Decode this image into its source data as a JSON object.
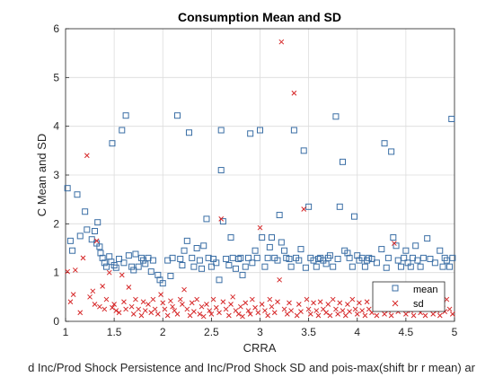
{
  "chart_data": {
    "type": "scatter",
    "title": "Consumption Mean and SD",
    "xlabel": "CRRA",
    "ylabel": "C Mean and SD",
    "caption": "d Inc/Prod Shock Persistence and Inc/Prod Shock SD and pois-max(shift br r mean) ar",
    "xlim": [
      1,
      5
    ],
    "ylim": [
      0,
      6
    ],
    "xticks": [
      "1",
      "1.5",
      "2",
      "2.5",
      "3",
      "3.5",
      "4",
      "4.5",
      "5"
    ],
    "yticks": [
      "0",
      "1",
      "2",
      "3",
      "4",
      "5",
      "6"
    ],
    "grid": true,
    "legend_position": "bottom-right",
    "colors": {
      "mean": "#3a6ea5",
      "sd": "#d62728"
    },
    "series": [
      {
        "name": "mean",
        "marker": "square",
        "points": [
          [
            1.02,
            2.73
          ],
          [
            1.05,
            1.65
          ],
          [
            1.07,
            1.45
          ],
          [
            1.12,
            2.6
          ],
          [
            1.15,
            1.75
          ],
          [
            1.2,
            2.25
          ],
          [
            1.22,
            1.88
          ],
          [
            1.27,
            1.68
          ],
          [
            1.3,
            1.85
          ],
          [
            1.32,
            1.6
          ],
          [
            1.33,
            2.03
          ],
          [
            1.35,
            1.53
          ],
          [
            1.36,
            1.4
          ],
          [
            1.38,
            1.3
          ],
          [
            1.4,
            1.2
          ],
          [
            1.42,
            1.12
          ],
          [
            1.45,
            1.33
          ],
          [
            1.47,
            1.22
          ],
          [
            1.48,
            3.65
          ],
          [
            1.5,
            1.15
          ],
          [
            1.52,
            1.1
          ],
          [
            1.55,
            1.28
          ],
          [
            1.58,
            3.92
          ],
          [
            1.6,
            1.2
          ],
          [
            1.62,
            4.22
          ],
          [
            1.65,
            1.35
          ],
          [
            1.68,
            1.12
          ],
          [
            1.7,
            1.05
          ],
          [
            1.72,
            1.38
          ],
          [
            1.75,
            1.12
          ],
          [
            1.78,
            1.3
          ],
          [
            1.8,
            1.25
          ],
          [
            1.82,
            1.18
          ],
          [
            1.85,
            1.3
          ],
          [
            1.88,
            1.02
          ],
          [
            1.9,
            1.25
          ],
          [
            1.95,
            0.95
          ],
          [
            1.97,
            0.85
          ],
          [
            2.0,
            0.78
          ],
          [
            2.05,
            1.25
          ],
          [
            2.08,
            0.93
          ],
          [
            2.1,
            1.3
          ],
          [
            2.15,
            4.22
          ],
          [
            2.18,
            1.28
          ],
          [
            2.2,
            1.15
          ],
          [
            2.22,
            1.45
          ],
          [
            2.25,
            1.65
          ],
          [
            2.27,
            3.87
          ],
          [
            2.3,
            1.3
          ],
          [
            2.32,
            1.12
          ],
          [
            2.35,
            1.5
          ],
          [
            2.38,
            1.25
          ],
          [
            2.4,
            1.08
          ],
          [
            2.42,
            1.55
          ],
          [
            2.45,
            2.1
          ],
          [
            2.47,
            1.3
          ],
          [
            2.5,
            1.12
          ],
          [
            2.52,
            1.28
          ],
          [
            2.55,
            1.2
          ],
          [
            2.58,
            0.85
          ],
          [
            2.6,
            3.92
          ],
          [
            2.6,
            3.1
          ],
          [
            2.62,
            2.05
          ],
          [
            2.65,
            1.28
          ],
          [
            2.68,
            1.15
          ],
          [
            2.7,
            1.72
          ],
          [
            2.72,
            1.3
          ],
          [
            2.75,
            1.08
          ],
          [
            2.78,
            1.28
          ],
          [
            2.8,
            1.3
          ],
          [
            2.82,
            0.95
          ],
          [
            2.85,
            1.12
          ],
          [
            2.88,
            1.3
          ],
          [
            2.9,
            3.85
          ],
          [
            2.92,
            1.2
          ],
          [
            2.95,
            1.45
          ],
          [
            2.97,
            1.3
          ],
          [
            3.0,
            3.92
          ],
          [
            3.02,
            1.72
          ],
          [
            3.05,
            1.12
          ],
          [
            3.08,
            1.3
          ],
          [
            3.1,
            1.52
          ],
          [
            3.12,
            1.72
          ],
          [
            3.15,
            1.3
          ],
          [
            3.18,
            1.25
          ],
          [
            3.2,
            2.18
          ],
          [
            3.22,
            1.62
          ],
          [
            3.25,
            1.45
          ],
          [
            3.27,
            1.3
          ],
          [
            3.3,
            1.28
          ],
          [
            3.32,
            1.12
          ],
          [
            3.35,
            3.92
          ],
          [
            3.37,
            1.3
          ],
          [
            3.4,
            1.25
          ],
          [
            3.42,
            1.48
          ],
          [
            3.45,
            3.5
          ],
          [
            3.47,
            1.1
          ],
          [
            3.5,
            2.35
          ],
          [
            3.52,
            1.3
          ],
          [
            3.55,
            1.25
          ],
          [
            3.58,
            1.12
          ],
          [
            3.6,
            1.28
          ],
          [
            3.62,
            1.3
          ],
          [
            3.65,
            1.25
          ],
          [
            3.68,
            1.18
          ],
          [
            3.7,
            1.3
          ],
          [
            3.72,
            1.35
          ],
          [
            3.75,
            1.12
          ],
          [
            3.78,
            4.2
          ],
          [
            3.8,
            1.28
          ],
          [
            3.82,
            2.35
          ],
          [
            3.85,
            3.27
          ],
          [
            3.87,
            1.45
          ],
          [
            3.9,
            1.4
          ],
          [
            3.92,
            1.3
          ],
          [
            3.95,
            1.12
          ],
          [
            3.97,
            2.15
          ],
          [
            4.0,
            1.35
          ],
          [
            4.02,
            1.25
          ],
          [
            4.05,
            1.3
          ],
          [
            4.08,
            1.12
          ],
          [
            4.1,
            1.25
          ],
          [
            4.12,
            1.3
          ],
          [
            4.15,
            1.28
          ],
          [
            4.2,
            1.2
          ],
          [
            4.25,
            1.48
          ],
          [
            4.28,
            3.65
          ],
          [
            4.3,
            1.1
          ],
          [
            4.32,
            1.3
          ],
          [
            4.35,
            3.48
          ],
          [
            4.37,
            1.72
          ],
          [
            4.4,
            1.55
          ],
          [
            4.42,
            1.25
          ],
          [
            4.45,
            1.12
          ],
          [
            4.48,
            1.3
          ],
          [
            4.5,
            1.45
          ],
          [
            4.52,
            1.2
          ],
          [
            4.55,
            1.12
          ],
          [
            4.57,
            1.3
          ],
          [
            4.6,
            1.55
          ],
          [
            4.62,
            1.25
          ],
          [
            4.65,
            1.12
          ],
          [
            4.68,
            1.3
          ],
          [
            4.72,
            1.7
          ],
          [
            4.75,
            1.28
          ],
          [
            4.8,
            1.2
          ],
          [
            4.85,
            1.45
          ],
          [
            4.88,
            1.12
          ],
          [
            4.9,
            1.3
          ],
          [
            4.92,
            1.25
          ],
          [
            4.95,
            1.12
          ],
          [
            4.97,
            4.15
          ],
          [
            4.98,
            1.3
          ]
        ]
      },
      {
        "name": "sd",
        "marker": "x",
        "points": [
          [
            1.02,
            1.02
          ],
          [
            1.05,
            0.4
          ],
          [
            1.08,
            0.55
          ],
          [
            1.1,
            1.05
          ],
          [
            1.15,
            0.18
          ],
          [
            1.18,
            1.3
          ],
          [
            1.22,
            3.4
          ],
          [
            1.25,
            0.5
          ],
          [
            1.28,
            0.62
          ],
          [
            1.3,
            0.35
          ],
          [
            1.32,
            1.65
          ],
          [
            1.35,
            0.3
          ],
          [
            1.38,
            0.72
          ],
          [
            1.4,
            0.25
          ],
          [
            1.42,
            0.45
          ],
          [
            1.45,
            1.0
          ],
          [
            1.48,
            0.28
          ],
          [
            1.5,
            0.35
          ],
          [
            1.52,
            0.22
          ],
          [
            1.55,
            0.18
          ],
          [
            1.58,
            0.95
          ],
          [
            1.6,
            0.4
          ],
          [
            1.62,
            0.25
          ],
          [
            1.65,
            0.7
          ],
          [
            1.68,
            0.3
          ],
          [
            1.7,
            0.15
          ],
          [
            1.72,
            0.45
          ],
          [
            1.75,
            0.25
          ],
          [
            1.78,
            0.12
          ],
          [
            1.8,
            0.4
          ],
          [
            1.82,
            0.22
          ],
          [
            1.85,
            0.35
          ],
          [
            1.88,
            0.18
          ],
          [
            1.9,
            0.45
          ],
          [
            1.92,
            0.25
          ],
          [
            1.95,
            0.15
          ],
          [
            1.98,
            0.55
          ],
          [
            2.0,
            0.38
          ],
          [
            2.02,
            0.25
          ],
          [
            2.05,
            0.12
          ],
          [
            2.08,
            0.42
          ],
          [
            2.1,
            0.3
          ],
          [
            2.12,
            0.22
          ],
          [
            2.15,
            0.15
          ],
          [
            2.18,
            0.45
          ],
          [
            2.2,
            0.35
          ],
          [
            2.22,
            0.65
          ],
          [
            2.25,
            0.25
          ],
          [
            2.28,
            0.12
          ],
          [
            2.3,
            0.38
          ],
          [
            2.32,
            0.2
          ],
          [
            2.35,
            0.45
          ],
          [
            2.38,
            0.15
          ],
          [
            2.4,
            0.3
          ],
          [
            2.42,
            0.1
          ],
          [
            2.45,
            0.35
          ],
          [
            2.48,
            0.22
          ],
          [
            2.5,
            0.15
          ],
          [
            2.52,
            0.45
          ],
          [
            2.55,
            0.28
          ],
          [
            2.58,
            0.18
          ],
          [
            2.6,
            2.1
          ],
          [
            2.62,
            0.4
          ],
          [
            2.65,
            0.25
          ],
          [
            2.68,
            0.12
          ],
          [
            2.7,
            0.35
          ],
          [
            2.72,
            0.5
          ],
          [
            2.75,
            0.22
          ],
          [
            2.78,
            0.15
          ],
          [
            2.8,
            0.3
          ],
          [
            2.82,
            0.1
          ],
          [
            2.85,
            0.38
          ],
          [
            2.88,
            0.22
          ],
          [
            2.9,
            0.15
          ],
          [
            2.92,
            0.45
          ],
          [
            2.95,
            0.28
          ],
          [
            2.98,
            0.18
          ],
          [
            3.0,
            1.92
          ],
          [
            3.02,
            0.35
          ],
          [
            3.05,
            0.22
          ],
          [
            3.08,
            0.12
          ],
          [
            3.1,
            0.45
          ],
          [
            3.12,
            0.3
          ],
          [
            3.15,
            0.18
          ],
          [
            3.18,
            0.4
          ],
          [
            3.2,
            0.85
          ],
          [
            3.22,
            5.73
          ],
          [
            3.25,
            0.25
          ],
          [
            3.28,
            0.15
          ],
          [
            3.3,
            0.38
          ],
          [
            3.32,
            0.22
          ],
          [
            3.35,
            4.68
          ],
          [
            3.38,
            0.12
          ],
          [
            3.4,
            0.35
          ],
          [
            3.42,
            0.2
          ],
          [
            3.45,
            2.3
          ],
          [
            3.48,
            0.45
          ],
          [
            3.5,
            0.25
          ],
          [
            3.52,
            0.15
          ],
          [
            3.55,
            0.38
          ],
          [
            3.58,
            0.22
          ],
          [
            3.6,
            0.12
          ],
          [
            3.62,
            0.4
          ],
          [
            3.65,
            0.25
          ],
          [
            3.68,
            0.18
          ],
          [
            3.7,
            0.35
          ],
          [
            3.72,
            0.12
          ],
          [
            3.75,
            0.45
          ],
          [
            3.78,
            0.25
          ],
          [
            3.8,
            0.15
          ],
          [
            3.82,
            0.38
          ],
          [
            3.85,
            0.22
          ],
          [
            3.88,
            0.12
          ],
          [
            3.9,
            0.35
          ],
          [
            3.92,
            0.2
          ],
          [
            3.95,
            0.45
          ],
          [
            3.98,
            0.25
          ],
          [
            4.0,
            0.15
          ],
          [
            4.02,
            0.38
          ],
          [
            4.05,
            0.22
          ],
          [
            4.08,
            0.12
          ],
          [
            4.1,
            0.4
          ],
          [
            4.12,
            0.25
          ],
          [
            4.15,
            0.18
          ],
          [
            4.18,
            0.35
          ],
          [
            4.2,
            0.12
          ],
          [
            4.22,
            0.45
          ],
          [
            4.25,
            0.25
          ],
          [
            4.28,
            0.15
          ],
          [
            4.3,
            0.38
          ],
          [
            4.32,
            0.22
          ],
          [
            4.35,
            0.12
          ],
          [
            4.38,
            1.6
          ],
          [
            4.4,
            0.35
          ],
          [
            4.42,
            0.2
          ],
          [
            4.45,
            0.45
          ],
          [
            4.48,
            0.25
          ],
          [
            4.5,
            0.15
          ],
          [
            4.52,
            0.38
          ],
          [
            4.55,
            0.22
          ],
          [
            4.58,
            0.12
          ],
          [
            4.6,
            0.4
          ],
          [
            4.62,
            0.25
          ],
          [
            4.65,
            0.18
          ],
          [
            4.68,
            0.35
          ],
          [
            4.7,
            0.12
          ],
          [
            4.72,
            0.45
          ],
          [
            4.75,
            0.25
          ],
          [
            4.78,
            0.15
          ],
          [
            4.8,
            0.38
          ],
          [
            4.82,
            0.22
          ],
          [
            4.85,
            0.12
          ],
          [
            4.88,
            0.35
          ],
          [
            4.9,
            0.2
          ],
          [
            4.92,
            0.45
          ],
          [
            4.95,
            0.25
          ],
          [
            4.98,
            0.15
          ]
        ]
      }
    ]
  }
}
